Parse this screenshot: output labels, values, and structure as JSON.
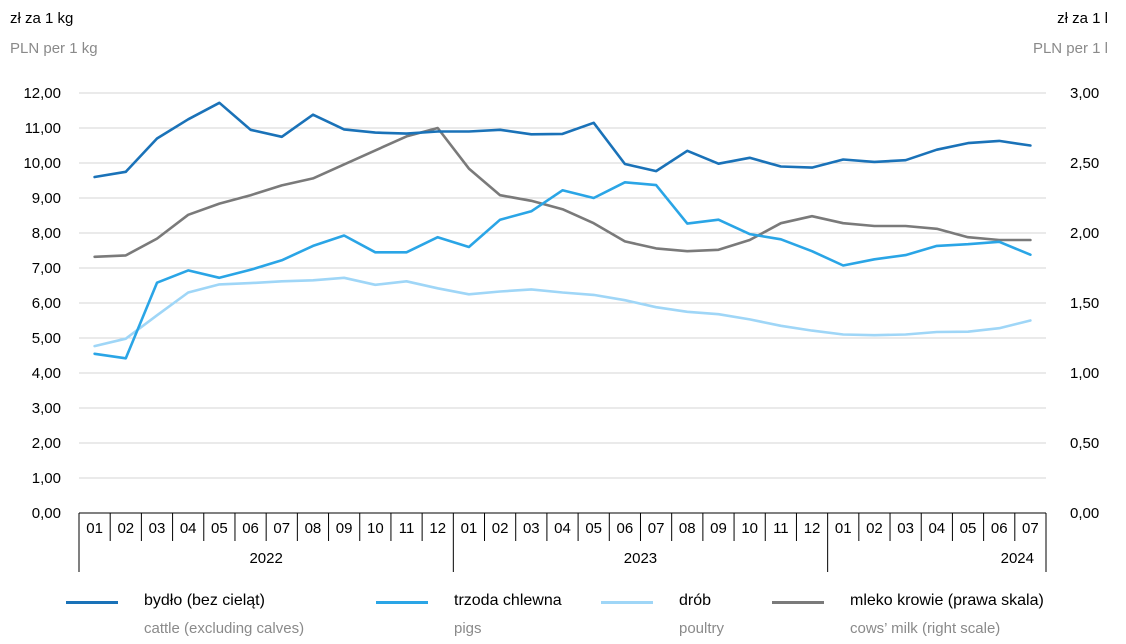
{
  "units": {
    "left_pl": "zł za 1 kg",
    "left_en": "PLN per 1 kg",
    "right_pl": "zł za 1 l",
    "right_en": "PLN per 1 l"
  },
  "chart_data": {
    "type": "line",
    "x": [
      "01",
      "02",
      "03",
      "04",
      "05",
      "06",
      "07",
      "08",
      "09",
      "10",
      "11",
      "12",
      "01",
      "02",
      "03",
      "04",
      "05",
      "06",
      "07",
      "08",
      "09",
      "10",
      "11",
      "12",
      "01",
      "02",
      "03",
      "04",
      "05",
      "06",
      "07"
    ],
    "years": [
      {
        "label": "2022",
        "months": 12
      },
      {
        "label": "2023",
        "months": 12
      },
      {
        "label": "2024",
        "months": 7
      }
    ],
    "y_left": {
      "lim": [
        0,
        12
      ],
      "ticks": [
        "0,00",
        "1,00",
        "2,00",
        "3,00",
        "4,00",
        "5,00",
        "6,00",
        "7,00",
        "8,00",
        "9,00",
        "10,00",
        "11,00",
        "12,00"
      ]
    },
    "y_right": {
      "lim": [
        0,
        3
      ],
      "ticks": [
        "0,00",
        "0,50",
        "1,00",
        "1,50",
        "2,00",
        "2,50",
        "3,00"
      ]
    },
    "grid": "horizontal",
    "legend_position": "bottom",
    "series": [
      {
        "name": "bydło (bez cieląt)",
        "name_en": "cattle (excluding calves)",
        "axis": "left",
        "color": "#1a72b8",
        "values": [
          9.6,
          9.75,
          10.7,
          11.25,
          11.72,
          10.95,
          10.75,
          11.38,
          10.96,
          10.87,
          10.84,
          10.9,
          10.9,
          10.95,
          10.82,
          10.83,
          11.15,
          9.97,
          9.77,
          10.35,
          9.98,
          10.15,
          9.9,
          9.87,
          10.1,
          10.03,
          10.08,
          10.38,
          10.57,
          10.63,
          10.5
        ]
      },
      {
        "name": "trzoda chlewna",
        "name_en": "pigs",
        "axis": "left",
        "color": "#2aa5e6",
        "values": [
          4.55,
          4.42,
          6.58,
          6.93,
          6.72,
          6.95,
          7.22,
          7.63,
          7.93,
          7.45,
          7.45,
          7.88,
          7.6,
          8.38,
          8.62,
          9.22,
          9.0,
          9.45,
          9.37,
          8.27,
          8.38,
          7.97,
          7.82,
          7.48,
          7.07,
          7.25,
          7.37,
          7.63,
          7.68,
          7.75,
          7.38
        ]
      },
      {
        "name": "drób",
        "name_en": "poultry",
        "axis": "left",
        "color": "#9fd6f7",
        "values": [
          4.77,
          4.98,
          5.65,
          6.3,
          6.53,
          6.57,
          6.62,
          6.65,
          6.72,
          6.52,
          6.62,
          6.42,
          6.25,
          6.33,
          6.39,
          6.3,
          6.23,
          6.08,
          5.88,
          5.75,
          5.68,
          5.53,
          5.35,
          5.21,
          5.1,
          5.08,
          5.1,
          5.17,
          5.18,
          5.28,
          5.5
        ]
      },
      {
        "name": "mleko krowie (prawa skala)",
        "name_en": "cows’ milk (right scale)",
        "axis": "right",
        "color": "#7a7a7a",
        "values": [
          1.83,
          1.84,
          1.96,
          2.13,
          2.21,
          2.27,
          2.34,
          2.39,
          2.49,
          2.59,
          2.69,
          2.75,
          2.46,
          2.27,
          2.23,
          2.17,
          2.07,
          1.94,
          1.89,
          1.87,
          1.88,
          1.95,
          2.07,
          2.12,
          2.07,
          2.05,
          2.05,
          2.03,
          1.97,
          1.95,
          1.95
        ]
      }
    ]
  }
}
